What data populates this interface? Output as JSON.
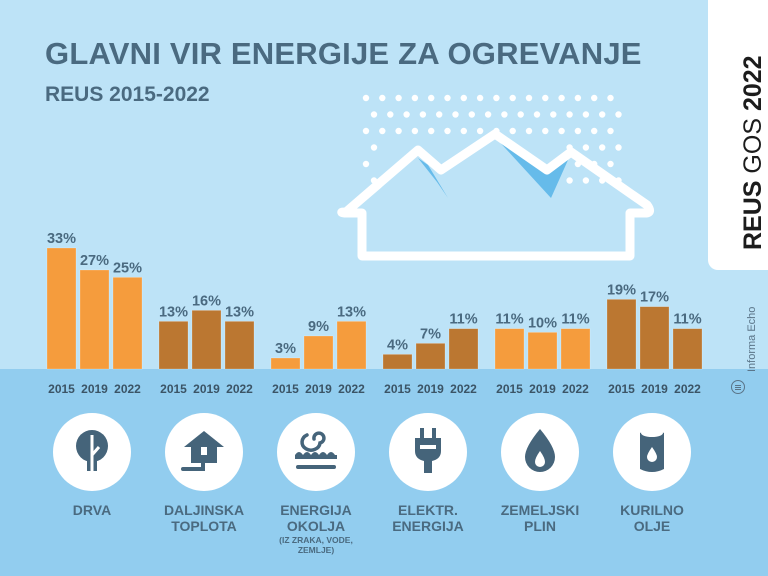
{
  "header": {
    "title": "GLAVNI VIR ENERGIJE ZA OGREVANJE",
    "subtitle": "REUS 2015-2022"
  },
  "side_tab": {
    "brand_bold": "REUS",
    "brand_light": "GOS",
    "year": "2022"
  },
  "credit": {
    "text": "Informa Echo",
    "icon": "informa-echo-logo-icon"
  },
  "colors": {
    "background": "#bde3f7",
    "band": "#92cdef",
    "bar_light": "#f59c3d",
    "bar_dark": "#bb7731",
    "text": "#4a6a80",
    "icon": "#45647a"
  },
  "categories": [
    {
      "label_lines": [
        "DRVA"
      ],
      "note_lines": [],
      "icon": "tree-icon"
    },
    {
      "label_lines": [
        "DALJINSKA",
        "TOPLOTA"
      ],
      "note_lines": [],
      "icon": "district-heating-house-icon"
    },
    {
      "label_lines": [
        "ENERGIJA",
        "OKOLJA"
      ],
      "note_lines": [
        "(IZ ZRAKA, VODE,",
        "ZEMLJE)"
      ],
      "icon": "ambient-energy-spiral-icon"
    },
    {
      "label_lines": [
        "ELEKTR.",
        "ENERGIJA"
      ],
      "note_lines": [],
      "icon": "electric-plug-icon"
    },
    {
      "label_lines": [
        "ZEMELJSKI",
        "PLIN"
      ],
      "note_lines": [],
      "icon": "gas-drop-icon"
    },
    {
      "label_lines": [
        "KURILNO",
        "OLJE"
      ],
      "note_lines": [],
      "icon": "oil-barrel-icon"
    }
  ],
  "chart_data": {
    "type": "bar",
    "title": "GLAVNI VIR ENERGIJE ZA OGREVANJE",
    "subtitle": "REUS 2015-2022",
    "xlabel": "",
    "ylabel": "",
    "unit": "%",
    "years": [
      "2015",
      "2019",
      "2022"
    ],
    "categories": [
      "DRVA",
      "DALJINSKA TOPLOTA",
      "ENERGIJA OKOLJA",
      "ELEKTR. ENERGIJA",
      "ZEMELJSKI PLIN",
      "KURILNO OLJE"
    ],
    "series": [
      {
        "name": "2015",
        "values": [
          33,
          13,
          3,
          4,
          11,
          19
        ]
      },
      {
        "name": "2019",
        "values": [
          27,
          16,
          9,
          7,
          10,
          17
        ]
      },
      {
        "name": "2022",
        "values": [
          25,
          13,
          13,
          11,
          11,
          11
        ]
      }
    ],
    "ylim": [
      0,
      33
    ],
    "grid": false,
    "legend": "none",
    "data_labels": true
  }
}
